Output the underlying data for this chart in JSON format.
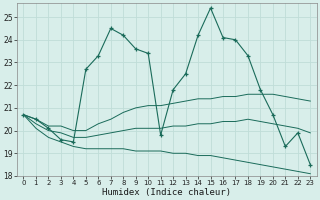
{
  "xlabel": "Humidex (Indice chaleur)",
  "background_color": "#d8eeea",
  "grid_color_major": "#c0ddd8",
  "grid_color_minor": "#e4f2f0",
  "line_color": "#1a6b5a",
  "x_values": [
    0,
    1,
    2,
    3,
    4,
    5,
    6,
    7,
    8,
    9,
    10,
    11,
    12,
    13,
    14,
    15,
    16,
    17,
    18,
    19,
    20,
    21,
    22,
    23
  ],
  "main_line": [
    20.7,
    20.5,
    20.1,
    19.6,
    19.5,
    22.7,
    23.3,
    24.5,
    24.2,
    23.6,
    23.4,
    19.8,
    21.8,
    22.5,
    24.2,
    25.4,
    24.1,
    24.0,
    23.3,
    21.8,
    20.7,
    19.3,
    19.9,
    18.5
  ],
  "line_upper": [
    20.7,
    20.5,
    20.2,
    20.2,
    20.0,
    20.0,
    20.3,
    20.5,
    20.8,
    21.0,
    21.1,
    21.1,
    21.2,
    21.3,
    21.4,
    21.4,
    21.5,
    21.5,
    21.6,
    21.6,
    21.6,
    21.5,
    21.4,
    21.3
  ],
  "line_mid": [
    20.7,
    20.3,
    20.0,
    19.9,
    19.7,
    19.7,
    19.8,
    19.9,
    20.0,
    20.1,
    20.1,
    20.1,
    20.2,
    20.2,
    20.3,
    20.3,
    20.4,
    20.4,
    20.5,
    20.4,
    20.3,
    20.2,
    20.1,
    19.9
  ],
  "line_lower": [
    20.7,
    20.1,
    19.7,
    19.5,
    19.3,
    19.2,
    19.2,
    19.2,
    19.2,
    19.1,
    19.1,
    19.1,
    19.0,
    19.0,
    18.9,
    18.9,
    18.8,
    18.7,
    18.6,
    18.5,
    18.4,
    18.3,
    18.2,
    18.1
  ],
  "ylim": [
    18,
    25.6
  ],
  "xlim": [
    -0.5,
    23.5
  ],
  "yticks": [
    18,
    19,
    20,
    21,
    22,
    23,
    24,
    25
  ],
  "xticks": [
    0,
    1,
    2,
    3,
    4,
    5,
    6,
    7,
    8,
    9,
    10,
    11,
    12,
    13,
    14,
    15,
    16,
    17,
    18,
    19,
    20,
    21,
    22,
    23
  ],
  "marker_indices": [
    0,
    1,
    2,
    3,
    4,
    5,
    6,
    7,
    8,
    9,
    10,
    11,
    12,
    13,
    14,
    15,
    16,
    17,
    18,
    19,
    20,
    21,
    22,
    23
  ]
}
